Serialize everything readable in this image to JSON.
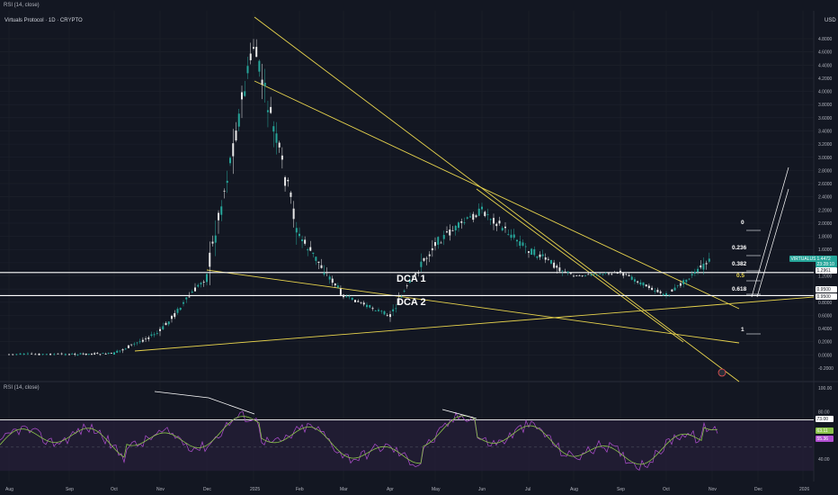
{
  "header": {
    "top_label": "RSI (14, close)",
    "symbol": "Virtuals Protocol · 1D · CRYPTO",
    "currency": "USD"
  },
  "rsi_panel": {
    "label": "RSI (14, close)"
  },
  "colors": {
    "background": "#131722",
    "grid": "#1e222d",
    "candle_up": "#26a69a",
    "candle_down": "#ef5350",
    "candle_body": "#e8e8e8",
    "trendline": "#e8d44d",
    "level_line": "#ffffff",
    "rsi_line": "#b14fd1",
    "rsi_ma": "#8bc34a",
    "rsi_band": "#2a1f3d",
    "green_badge": "#26a69a"
  },
  "annotations": {
    "dca1": "DCA 1",
    "dca2": "DCA 2",
    "fib_0": "0",
    "fib_0236": "0.236",
    "fib_0382": "0.382",
    "fib_05": "0.5",
    "fib_0618": "0.618",
    "fib_1": "1"
  },
  "chart_data": [
    {
      "type": "line",
      "title": "Virtuals Protocol · 1D · CRYPTO",
      "ylabel": "USD",
      "ylim": [
        -0.4,
        5.0
      ],
      "y_ticks": [
        "4.8000",
        "4.6000",
        "4.4000",
        "4.2000",
        "4.0000",
        "3.8000",
        "3.6000",
        "3.4000",
        "3.2000",
        "3.0000",
        "2.8000",
        "2.6000",
        "2.4000",
        "2.2000",
        "2.0000",
        "1.8000",
        "1.6000",
        "1.4000",
        "1.2000",
        "1.0000",
        "0.8000",
        "0.6000",
        "0.4000",
        "0.2000",
        "0.0000",
        "-0.2000"
      ],
      "x_ticks": [
        "Aug",
        "Sep",
        "Oct",
        "Nov",
        "Dec",
        "2025",
        "Feb",
        "Mar",
        "Apr",
        "May",
        "Jun",
        "Jul",
        "Aug",
        "Sep",
        "Oct",
        "Nov",
        "Dec",
        "2026"
      ],
      "series": [
        {
          "values_by_month": [
            {
              "month": "Aug",
              "price": 0.01
            },
            {
              "month": "Sep",
              "price": 0.01
            },
            {
              "month": "Oct",
              "price": 0.02
            },
            {
              "month": "Nov",
              "price": 0.35
            },
            {
              "month": "Dec",
              "price": 1.2
            },
            {
              "month": "2025",
              "price": 4.7
            },
            {
              "month": "Feb",
              "price": 1.8
            },
            {
              "month": "Mar",
              "price": 0.9
            },
            {
              "month": "Apr",
              "price": 0.6
            },
            {
              "month": "May",
              "price": 1.7
            },
            {
              "month": "Jun",
              "price": 2.2
            },
            {
              "month": "Jul",
              "price": 1.6
            },
            {
              "month": "Aug",
              "price": 1.2
            },
            {
              "month": "Sep",
              "price": 1.25
            },
            {
              "month": "Oct",
              "price": 0.9
            },
            {
              "month": "Nov",
              "price": 1.45
            }
          ]
        }
      ],
      "price_labels": [
        {
          "text": "VIRTUALUSD",
          "value": 1.4472
        },
        {
          "text": "1.4472",
          "value": 1.4472
        },
        {
          "text": "23:28:10",
          "value": 1.4472
        },
        {
          "text": "1.2961",
          "value": 1.2961
        },
        {
          "text": "0.9500",
          "value": 0.95
        },
        {
          "text": "0.9500",
          "value": 0.95
        }
      ],
      "horizontal_levels": [
        1.2961,
        0.95
      ]
    },
    {
      "type": "line",
      "title": "RSI (14, close)",
      "ylim": [
        30,
        100
      ],
      "y_ticks": [
        "100.00",
        "80.00",
        "40.00"
      ],
      "band": [
        30,
        73
      ],
      "level_labels": [
        {
          "text": "73.00",
          "value": 73
        },
        {
          "text": "63.11",
          "value": 63.11
        },
        {
          "text": "55.36",
          "value": 55.36
        }
      ]
    }
  ]
}
